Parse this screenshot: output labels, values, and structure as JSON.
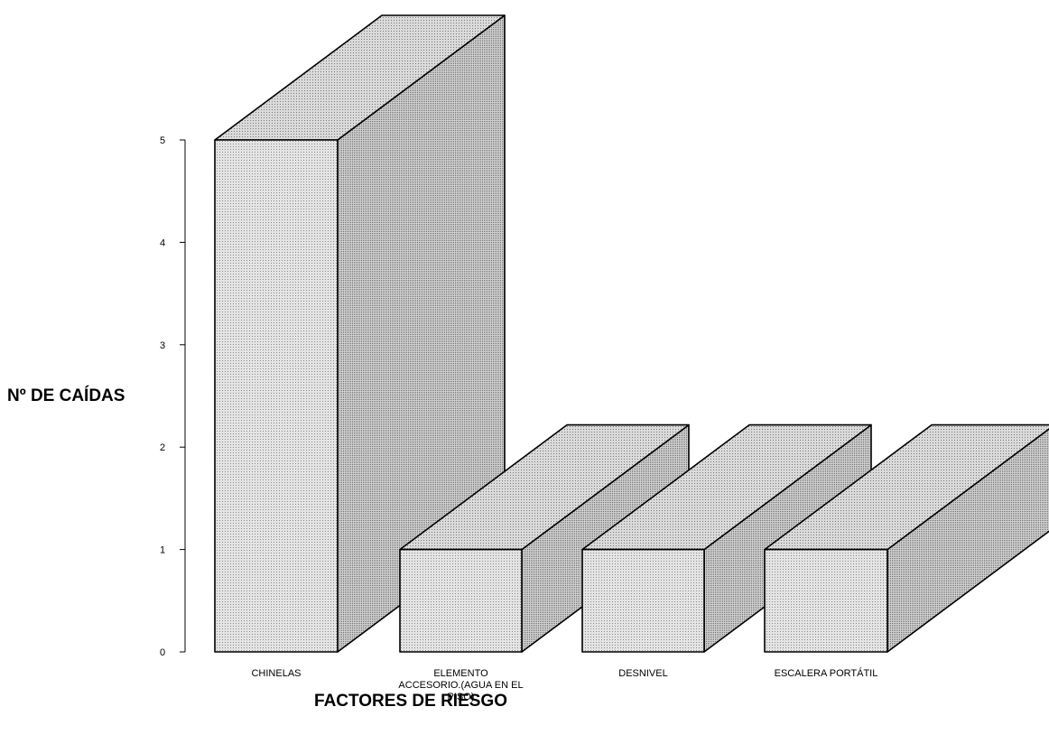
{
  "chart_data": {
    "type": "bar",
    "style": "3d",
    "xlabel": "FACTORES DE RIESGO",
    "ylabel": "Nº DE CAÍDAS",
    "ylim": [
      0,
      5
    ],
    "yticks": [
      "0",
      "1",
      "2",
      "3",
      "4",
      "5"
    ],
    "categories": [
      [
        "CHINELAS"
      ],
      [
        "ELEMENTO",
        "ACCESORIO.(AGUA EN EL",
        "PISO)"
      ],
      [
        "DESNIVEL"
      ],
      [
        "ESCALERA PORTÁTIL"
      ]
    ],
    "values": [
      5,
      1,
      1,
      1
    ],
    "bar_fill": "#dcdcdc",
    "grid": false
  }
}
